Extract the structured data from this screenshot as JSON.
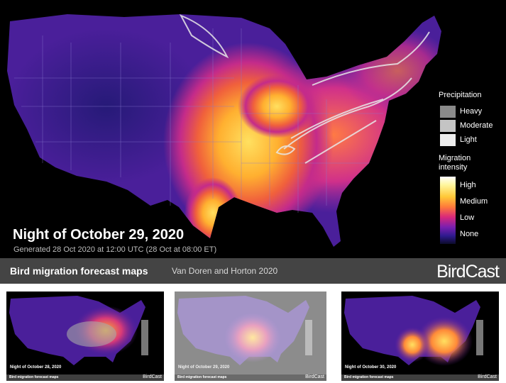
{
  "main": {
    "title": "Night of October 29, 2020",
    "subtitle": "Generated 28 Oct 2020 at 12:00 UTC (28 Oct at 08:00 ET)",
    "footer_title": "Bird migration forecast maps",
    "footer_credit": "Van Doren and Horton 2020",
    "brand": "BirdCast"
  },
  "legend": {
    "precip_heading": "Precipitation",
    "precip_levels": [
      "Heavy",
      "Moderate",
      "Light"
    ],
    "precip_colors": [
      "#8a8a8a",
      "#c4c4c4",
      "#ececec"
    ],
    "migration_heading": "Migration intensity",
    "migration_levels": [
      "High",
      "Medium",
      "Low",
      "None"
    ]
  },
  "colors": {
    "background": "#000000",
    "footer": "#444444",
    "high": "#ffffe0",
    "medium": "#ff9a2e",
    "low": "#6a1fa8",
    "none": "#120a3a"
  },
  "thumbnails": [
    {
      "title": "Night of October 28, 2020",
      "footer": "Bird migration forecast maps",
      "brand": "BirdCast",
      "theme": "dark"
    },
    {
      "title": "Night of October 29, 2020",
      "footer": "Bird migration forecast maps",
      "brand": "BirdCast",
      "theme": "light"
    },
    {
      "title": "Night of October 30, 2020",
      "footer": "Bird migration forecast maps",
      "brand": "BirdCast",
      "theme": "dark"
    }
  ]
}
